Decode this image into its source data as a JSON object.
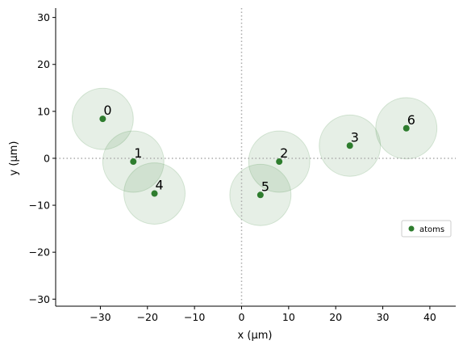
{
  "chart_data": {
    "type": "scatter",
    "xlabel": "x (µm)",
    "ylabel": "y (µm)",
    "xlim": [
      -39.5,
      45.5
    ],
    "ylim": [
      -31.5,
      32
    ],
    "xticks": [
      -30,
      -20,
      -10,
      0,
      10,
      20,
      30,
      40
    ],
    "yticks": [
      -30,
      -20,
      -10,
      0,
      10,
      20,
      30
    ],
    "xtick_labels": [
      "−30",
      "−20",
      "−10",
      "0",
      "10",
      "20",
      "30",
      "40"
    ],
    "ytick_labels": [
      "−30",
      "−20",
      "−10",
      "0",
      "10",
      "20",
      "30"
    ],
    "grid": false,
    "reference_lines": {
      "x": 0,
      "y": 0,
      "style": "dotted"
    },
    "blockade_radius": 6.5,
    "legend_placement": "center-right",
    "series": [
      {
        "name": "atoms",
        "color": "#2e7d2e",
        "labels": [
          "0",
          "1",
          "2",
          "3",
          "4",
          "5",
          "6"
        ],
        "x": [
          -29.5,
          -23.0,
          8.0,
          23.0,
          -18.5,
          4.0,
          35.0
        ],
        "y": [
          8.4,
          -0.7,
          -0.7,
          2.7,
          -7.5,
          -7.8,
          6.4
        ]
      }
    ]
  }
}
